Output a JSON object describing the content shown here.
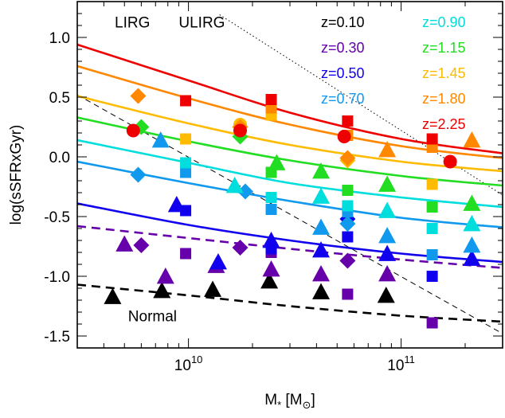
{
  "chart_data": {
    "type": "scatter",
    "xscale": "log",
    "xlim": [
      3000000000.0,
      300000000000.0
    ],
    "ylim": [
      -1.6,
      1.3
    ],
    "xlabel": "M",
    "xlabel_sub": "*",
    "xunit_open": " [M",
    "xunit_sub": "⊙",
    "xunit_close": "]",
    "ylabel": "log(sSFRxGyr)",
    "x_ticks_major": [
      {
        "value": 10000000000.0,
        "base": "10",
        "exp": "10"
      },
      {
        "value": 100000000000.0,
        "base": "10",
        "exp": "11"
      }
    ],
    "y_ticks": [
      {
        "value": 1.0,
        "label": "1.0"
      },
      {
        "value": 0.5,
        "label": "0.5"
      },
      {
        "value": 0.0,
        "label": "0.0"
      },
      {
        "value": -0.5,
        "label": "-0.5"
      },
      {
        "value": -1.0,
        "label": "-1.0"
      },
      {
        "value": -1.5,
        "label": "-1.5"
      }
    ],
    "region_labels": [
      {
        "text": "LIRG",
        "x": 4500000000.0,
        "y": 1.13
      },
      {
        "text": "ULIRG",
        "x": 9000000000.0,
        "y": 1.13
      },
      {
        "text": "Normal",
        "x": 5200000000.0,
        "y": -1.33
      }
    ],
    "threshold_lines": [
      {
        "name": "LIRG",
        "x": [
          3000000000.0,
          300000000000.0
        ],
        "y": [
          0.52,
          -1.48
        ]
      },
      {
        "name": "ULIRG",
        "x": [
          14000000000.0,
          300000000000.0
        ],
        "y": [
          1.19,
          -0.32
        ]
      }
    ],
    "legend": [
      {
        "label": "z=0.10",
        "color": "#000000"
      },
      {
        "label": "z=0.30",
        "color": "#6600aa"
      },
      {
        "label": "z=0.50",
        "color": "#1100ee"
      },
      {
        "label": "z=0.70",
        "color": "#1199ee"
      },
      {
        "label": "z=0.90",
        "color": "#00dddd"
      },
      {
        "label": "z=1.15",
        "color": "#22dd22"
      },
      {
        "label": "z=1.45",
        "color": "#ffbb00"
      },
      {
        "label": "z=1.80",
        "color": "#ff8800"
      },
      {
        "label": "z=2.25",
        "color": "#ee0000"
      }
    ],
    "series": [
      {
        "z": "0.10",
        "color": "#000000",
        "dashed": true,
        "curve": {
          "x": [
            3000000000.0,
            10000000000.0,
            30000000000.0,
            100000000000.0,
            300000000000.0
          ],
          "y": [
            -1.07,
            -1.16,
            -1.25,
            -1.33,
            -1.38
          ]
        },
        "points": [
          {
            "x": 4400000000.0,
            "y": -1.17,
            "marker": "triangle"
          },
          {
            "x": 7500000000.0,
            "y": -1.12,
            "marker": "triangle"
          },
          {
            "x": 13000000000.0,
            "y": -1.11,
            "marker": "triangle"
          },
          {
            "x": 24000000000.0,
            "y": -1.04,
            "marker": "triangle"
          },
          {
            "x": 42000000000.0,
            "y": -1.13,
            "marker": "triangle"
          },
          {
            "x": 85000000000.0,
            "y": -1.16,
            "marker": "triangle"
          }
        ]
      },
      {
        "z": "0.30",
        "color": "#6600aa",
        "dashed": true,
        "curve": {
          "x": [
            3000000000.0,
            10000000000.0,
            30000000000.0,
            100000000000.0,
            300000000000.0
          ],
          "y": [
            -0.58,
            -0.68,
            -0.77,
            -0.86,
            -0.93
          ]
        },
        "points": [
          {
            "x": 5000000000.0,
            "y": -0.73,
            "marker": "triangle"
          },
          {
            "x": 6000000000.0,
            "y": -0.74,
            "marker": "diamond"
          },
          {
            "x": 7800000000.0,
            "y": -1.0,
            "marker": "triangle"
          },
          {
            "x": 9700000000.0,
            "y": -0.81,
            "marker": "square"
          },
          {
            "x": 13500000000.0,
            "y": -0.91,
            "marker": "triangle"
          },
          {
            "x": 17500000000.0,
            "y": -0.76,
            "marker": "diamond"
          },
          {
            "x": 24500000000.0,
            "y": -0.8,
            "marker": "square"
          },
          {
            "x": 24500000000.0,
            "y": -0.94,
            "marker": "triangle"
          },
          {
            "x": 42000000000.0,
            "y": -0.98,
            "marker": "triangle"
          },
          {
            "x": 56000000000.0,
            "y": -0.87,
            "marker": "diamond"
          },
          {
            "x": 56000000000.0,
            "y": -1.15,
            "marker": "square"
          },
          {
            "x": 86000000000.0,
            "y": -0.98,
            "marker": "triangle"
          },
          {
            "x": 140000000000.0,
            "y": -1.39,
            "marker": "square"
          }
        ]
      },
      {
        "z": "0.50",
        "color": "#1100ee",
        "dashed": false,
        "curve": {
          "x": [
            3000000000.0,
            10000000000.0,
            30000000000.0,
            100000000000.0,
            300000000000.0
          ],
          "y": [
            -0.39,
            -0.57,
            -0.7,
            -0.81,
            -0.88
          ]
        },
        "points": [
          {
            "x": 8800000000.0,
            "y": -0.4,
            "marker": "triangle"
          },
          {
            "x": 9700000000.0,
            "y": -0.45,
            "marker": "square"
          },
          {
            "x": 13800000000.0,
            "y": -0.88,
            "marker": "triangle"
          },
          {
            "x": 24500000000.0,
            "y": -0.7,
            "marker": "triangle"
          },
          {
            "x": 24500000000.0,
            "y": -0.77,
            "marker": "square"
          },
          {
            "x": 42000000000.0,
            "y": -0.78,
            "marker": "triangle"
          },
          {
            "x": 56000000000.0,
            "y": -0.52,
            "marker": "diamond"
          },
          {
            "x": 56000000000.0,
            "y": -0.67,
            "marker": "square"
          },
          {
            "x": 86000000000.0,
            "y": -0.81,
            "marker": "triangle"
          },
          {
            "x": 140000000000.0,
            "y": -1.0,
            "marker": "square"
          },
          {
            "x": 215000000000.0,
            "y": -0.85,
            "marker": "triangle"
          }
        ]
      },
      {
        "z": "0.70",
        "color": "#1199ee",
        "dashed": false,
        "curve": {
          "x": [
            3000000000.0,
            10000000000.0,
            30000000000.0,
            100000000000.0,
            300000000000.0
          ],
          "y": [
            -0.04,
            -0.22,
            -0.37,
            -0.51,
            -0.59
          ]
        },
        "points": [
          {
            "x": 5800000000.0,
            "y": -0.15,
            "marker": "diamond"
          },
          {
            "x": 7400000000.0,
            "y": 0.14,
            "marker": "triangle"
          },
          {
            "x": 9700000000.0,
            "y": -0.13,
            "marker": "square"
          },
          {
            "x": 18500000000.0,
            "y": -0.29,
            "marker": "diamond"
          },
          {
            "x": 24500000000.0,
            "y": -0.44,
            "marker": "square"
          },
          {
            "x": 42000000000.0,
            "y": -0.59,
            "marker": "triangle"
          },
          {
            "x": 56000000000.0,
            "y": -0.46,
            "marker": "square"
          },
          {
            "x": 56000000000.0,
            "y": -0.56,
            "marker": "diamond"
          },
          {
            "x": 86000000000.0,
            "y": -0.66,
            "marker": "triangle"
          },
          {
            "x": 140000000000.0,
            "y": -0.82,
            "marker": "square"
          },
          {
            "x": 215000000000.0,
            "y": -0.74,
            "marker": "triangle"
          }
        ]
      },
      {
        "z": "0.90",
        "color": "#00dddd",
        "dashed": false,
        "curve": {
          "x": [
            3000000000.0,
            10000000000.0,
            30000000000.0,
            100000000000.0,
            300000000000.0
          ],
          "y": [
            0.14,
            -0.05,
            -0.22,
            -0.34,
            -0.42
          ]
        },
        "points": [
          {
            "x": 9700000000.0,
            "y": -0.05,
            "marker": "square"
          },
          {
            "x": 16500000000.0,
            "y": -0.24,
            "marker": "triangle"
          },
          {
            "x": 24500000000.0,
            "y": -0.34,
            "marker": "square"
          },
          {
            "x": 42000000000.0,
            "y": -0.33,
            "marker": "triangle"
          },
          {
            "x": 56000000000.0,
            "y": -0.41,
            "marker": "square"
          },
          {
            "x": 86000000000.0,
            "y": -0.45,
            "marker": "triangle"
          },
          {
            "x": 140000000000.0,
            "y": -0.6,
            "marker": "square"
          },
          {
            "x": 215000000000.0,
            "y": -0.56,
            "marker": "triangle"
          }
        ]
      },
      {
        "z": "1.15",
        "color": "#22dd22",
        "dashed": false,
        "curve": {
          "x": [
            3000000000.0,
            10000000000.0,
            30000000000.0,
            100000000000.0,
            300000000000.0
          ],
          "y": [
            0.33,
            0.13,
            -0.03,
            -0.16,
            -0.24
          ]
        },
        "points": [
          {
            "x": 6000000000.0,
            "y": 0.25,
            "marker": "diamond"
          },
          {
            "x": 17500000000.0,
            "y": 0.17,
            "marker": "diamond"
          },
          {
            "x": 24500000000.0,
            "y": -0.13,
            "marker": "square"
          },
          {
            "x": 26000000000.0,
            "y": -0.05,
            "marker": "triangle"
          },
          {
            "x": 42000000000.0,
            "y": -0.12,
            "marker": "triangle"
          },
          {
            "x": 56000000000.0,
            "y": -0.28,
            "marker": "square"
          },
          {
            "x": 86000000000.0,
            "y": -0.23,
            "marker": "triangle"
          },
          {
            "x": 140000000000.0,
            "y": -0.42,
            "marker": "square"
          },
          {
            "x": 215000000000.0,
            "y": -0.39,
            "marker": "triangle"
          }
        ]
      },
      {
        "z": "1.45",
        "color": "#ffbb00",
        "dashed": false,
        "curve": {
          "x": [
            3000000000.0,
            10000000000.0,
            30000000000.0,
            100000000000.0,
            300000000000.0
          ],
          "y": [
            0.51,
            0.28,
            0.1,
            -0.04,
            -0.12
          ]
        },
        "points": [
          {
            "x": 9700000000.0,
            "y": 0.15,
            "marker": "square"
          },
          {
            "x": 17500000000.0,
            "y": 0.27,
            "marker": "circle"
          },
          {
            "x": 24500000000.0,
            "y": 0.35,
            "marker": "square"
          },
          {
            "x": 56000000000.0,
            "y": -0.03,
            "marker": "diamond"
          },
          {
            "x": 140000000000.0,
            "y": -0.23,
            "marker": "square"
          }
        ]
      },
      {
        "z": "1.80",
        "color": "#ff8800",
        "dashed": false,
        "curve": {
          "x": [
            3000000000.0,
            10000000000.0,
            30000000000.0,
            100000000000.0,
            300000000000.0
          ],
          "y": [
            0.76,
            0.49,
            0.27,
            0.09,
            -0.01
          ]
        },
        "points": [
          {
            "x": 5800000000.0,
            "y": 0.51,
            "marker": "diamond"
          },
          {
            "x": 17500000000.0,
            "y": 0.25,
            "marker": "diamond"
          },
          {
            "x": 24500000000.0,
            "y": 0.41,
            "marker": "square"
          },
          {
            "x": 56000000000.0,
            "y": 0.18,
            "marker": "square"
          },
          {
            "x": 56000000000.0,
            "y": -0.01,
            "marker": "diamond"
          },
          {
            "x": 86000000000.0,
            "y": 0.06,
            "marker": "triangle"
          },
          {
            "x": 140000000000.0,
            "y": 0.08,
            "marker": "square"
          },
          {
            "x": 215000000000.0,
            "y": 0.14,
            "marker": "triangle"
          }
        ]
      },
      {
        "z": "2.25",
        "color": "#ee0000",
        "dashed": false,
        "curve": {
          "x": [
            3000000000.0,
            10000000000.0,
            30000000000.0,
            100000000000.0,
            300000000000.0
          ],
          "y": [
            0.94,
            0.64,
            0.37,
            0.15,
            0.03
          ]
        },
        "points": [
          {
            "x": 5500000000.0,
            "y": 0.22,
            "marker": "circle"
          },
          {
            "x": 9700000000.0,
            "y": 0.47,
            "marker": "square"
          },
          {
            "x": 17500000000.0,
            "y": 0.22,
            "marker": "circle"
          },
          {
            "x": 24500000000.0,
            "y": 0.48,
            "marker": "square"
          },
          {
            "x": 56000000000.0,
            "y": 0.3,
            "marker": "square"
          },
          {
            "x": 54000000000.0,
            "y": 0.17,
            "marker": "circle"
          },
          {
            "x": 140000000000.0,
            "y": 0.15,
            "marker": "square"
          },
          {
            "x": 170000000000.0,
            "y": -0.04,
            "marker": "circle"
          }
        ]
      }
    ]
  }
}
